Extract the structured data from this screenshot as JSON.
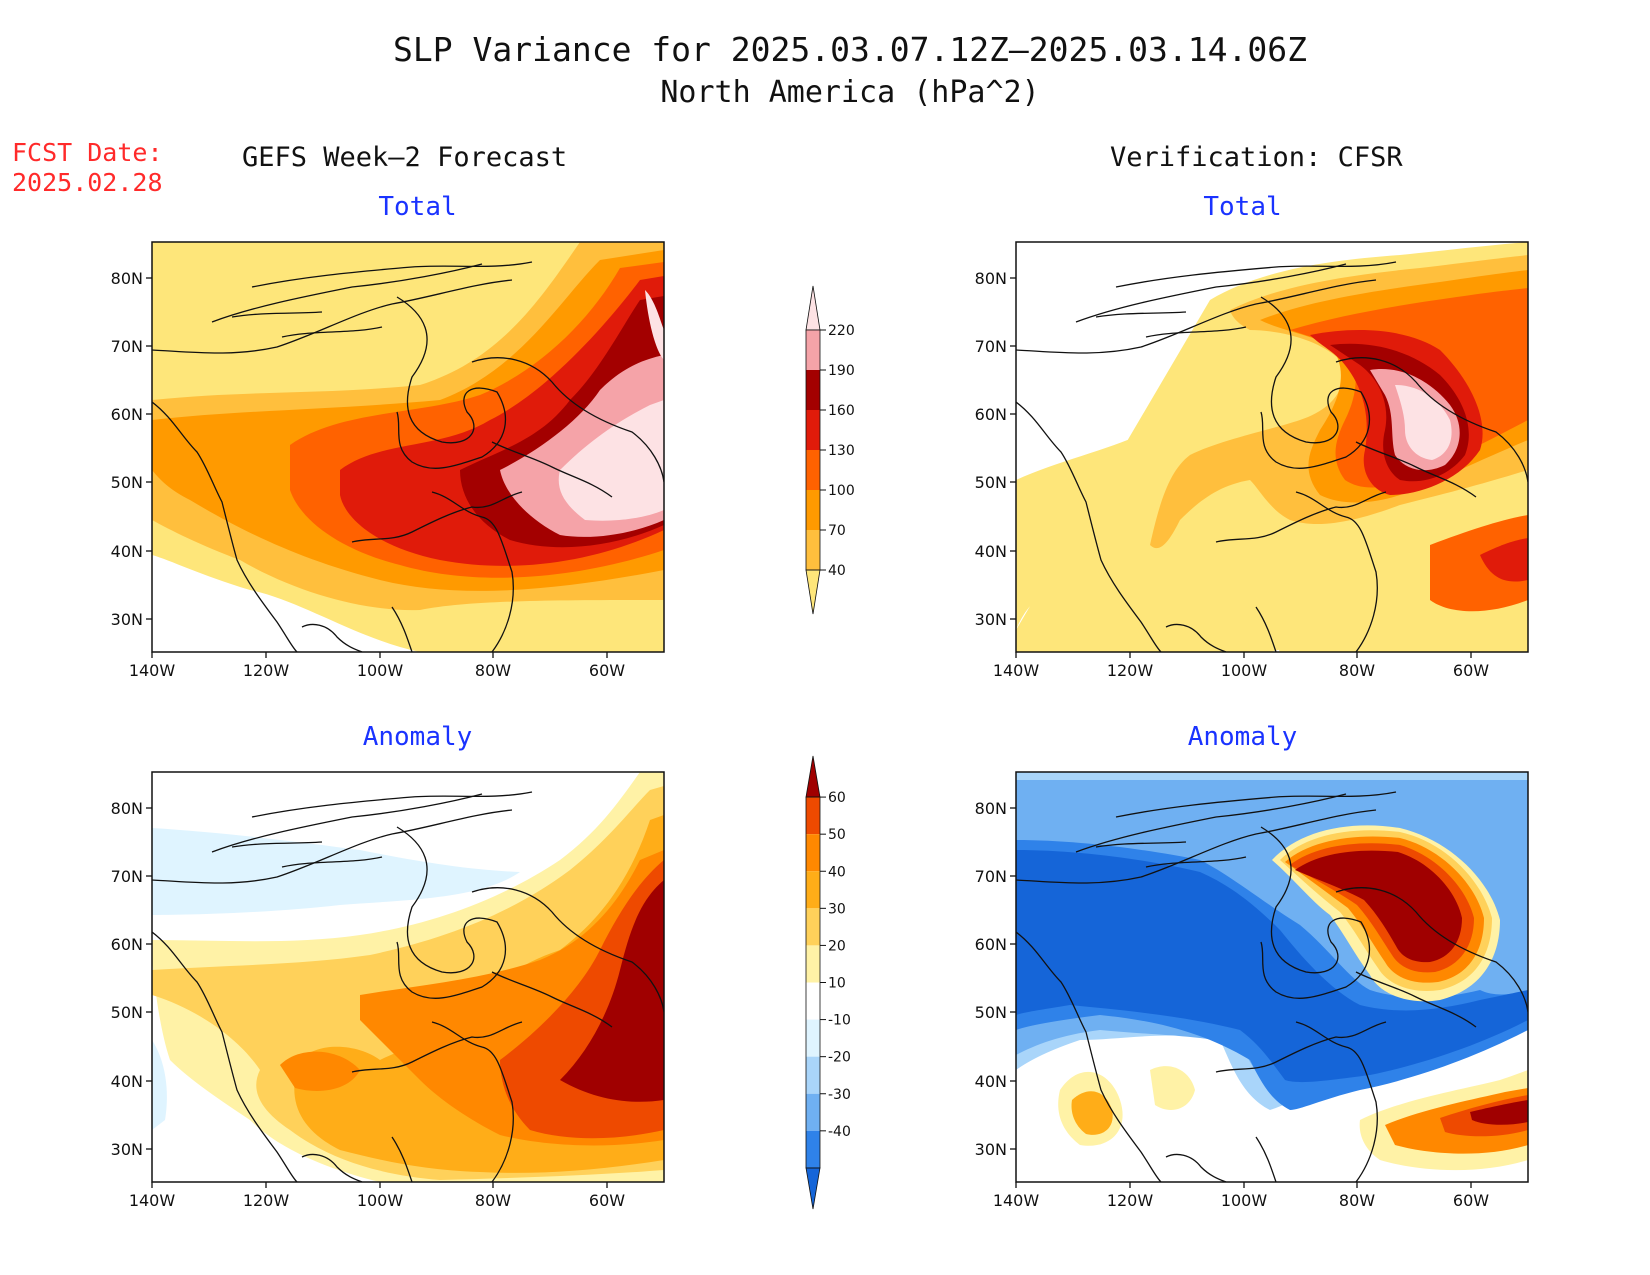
{
  "title": {
    "line1": "SLP Variance for 2025.03.07.12Z–2025.03.14.06Z",
    "line2": "North America (hPa^2)"
  },
  "fcst_date": {
    "label": "FCST Date:",
    "value": "2025.02.28"
  },
  "columns": {
    "left": "GEFS Week–2 Forecast",
    "right": "Verification: CFSR"
  },
  "panel_titles": {
    "total": "Total",
    "anomaly": "Anomaly"
  },
  "axes": {
    "lat_ticks": [
      "80N",
      "70N",
      "60N",
      "50N",
      "40N",
      "30N"
    ],
    "lon_ticks": [
      "140W",
      "120W",
      "100W",
      "80W",
      "60W"
    ]
  },
  "colorbars": {
    "total": {
      "levels": [
        "40",
        "70",
        "100",
        "130",
        "160",
        "190",
        "220"
      ],
      "colors": [
        "#fee67a",
        "#ffbf3d",
        "#ff9a00",
        "#ff6200",
        "#e01b0a",
        "#a30000",
        "#f5a3a8",
        "#fde2e4"
      ]
    },
    "anomaly": {
      "levels": [
        "-40",
        "-30",
        "-20",
        "-10",
        "10",
        "20",
        "30",
        "40",
        "50",
        "60"
      ],
      "colors": [
        "#1565d8",
        "#2f82e9",
        "#6fb0f2",
        "#a9d5fa",
        "#dff4ff",
        "#ffffff",
        "#fff2a6",
        "#ffd15a",
        "#ffad18",
        "#ff8800",
        "#ee4a00",
        "#a00000"
      ]
    }
  },
  "colors": {
    "title": "#111111",
    "fcst_date": "#ff2a2a",
    "panel_title": "#1a33ff"
  }
}
